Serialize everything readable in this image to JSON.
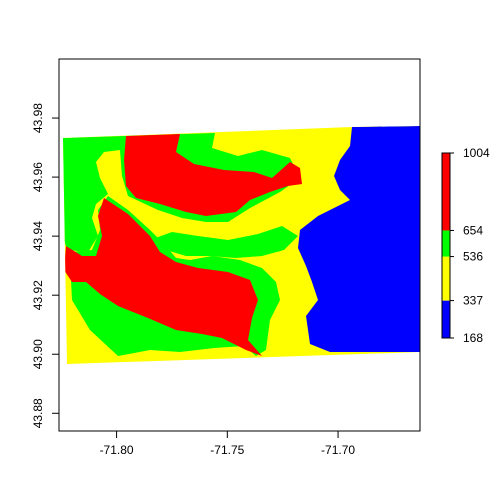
{
  "map": {
    "title": "",
    "xlabel": "",
    "ylabel": "",
    "xlim": [
      -71.826,
      -71.663
    ],
    "ylim": [
      43.874,
      44.0
    ],
    "x_ticks": [
      {
        "value": -71.8,
        "label": "-71.80"
      },
      {
        "value": -71.75,
        "label": "-71.75"
      },
      {
        "value": -71.7,
        "label": "-71.70"
      }
    ],
    "y_ticks": [
      {
        "value": 43.88,
        "label": "43.88"
      },
      {
        "value": 43.9,
        "label": "43.90"
      },
      {
        "value": 43.92,
        "label": "43.92"
      },
      {
        "value": 43.94,
        "label": "43.94"
      },
      {
        "value": 43.96,
        "label": "43.96"
      },
      {
        "value": 43.98,
        "label": "43.98"
      }
    ],
    "colors": {
      "class_1": "#0000ff",
      "class_2": "#ffff00",
      "class_3": "#00ff00",
      "class_4": "#ff0000"
    }
  },
  "legend": {
    "placement": "right",
    "breaks": [
      {
        "value": 168,
        "label": "168"
      },
      {
        "value": 337,
        "label": "337"
      },
      {
        "value": 536,
        "label": "536"
      },
      {
        "value": 654,
        "label": "654"
      },
      {
        "value": 1004,
        "label": "1004"
      }
    ],
    "classes": [
      {
        "from": 168,
        "to": 337,
        "color": "#0000ff"
      },
      {
        "from": 337,
        "to": 536,
        "color": "#ffff00"
      },
      {
        "from": 536,
        "to": 654,
        "color": "#00ff00"
      },
      {
        "from": 654,
        "to": 1004,
        "color": "#ff0000"
      }
    ]
  }
}
